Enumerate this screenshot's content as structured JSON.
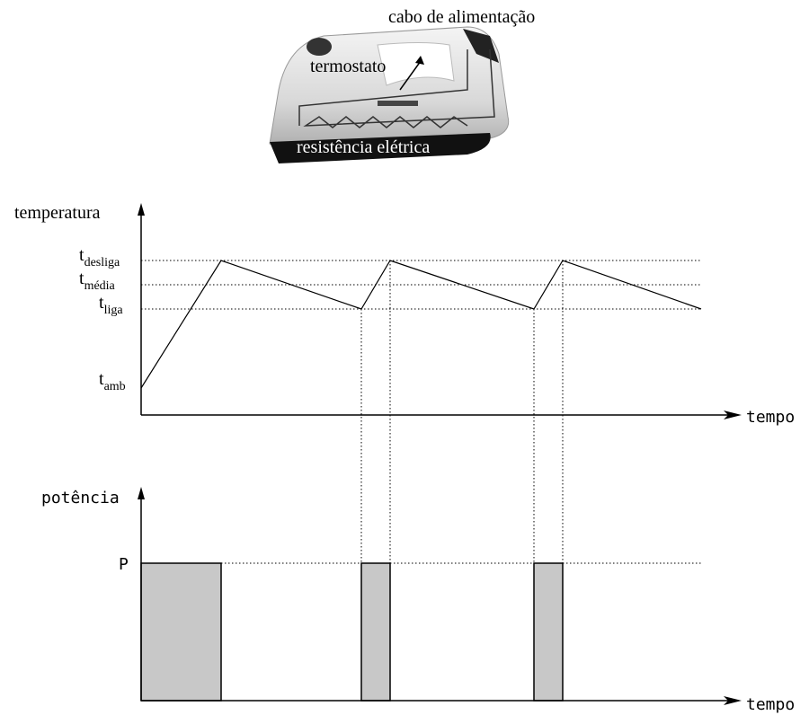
{
  "iron": {
    "cable_label": "cabo de alimentação",
    "thermostat_label": "termostato",
    "resistance_label": "resistência elétrica"
  },
  "temperature_graph": {
    "y_label": "temperatura",
    "x_label": "tempo",
    "levels": [
      {
        "base": "t",
        "sub": "desliga"
      },
      {
        "base": "t",
        "sub": "média"
      },
      {
        "base": "t",
        "sub": "liga"
      },
      {
        "base": "t",
        "sub": "amb"
      }
    ]
  },
  "power_graph": {
    "y_label": "potência",
    "x_label": "tempo",
    "level_label": "P"
  }
}
